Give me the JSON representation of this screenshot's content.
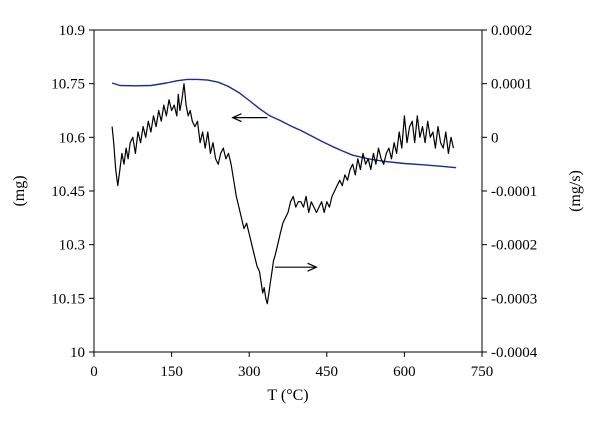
{
  "chart_data": {
    "type": "line",
    "title": "",
    "xlabel": "T (°C)",
    "ylabel_left": "(mg)",
    "ylabel_right": "(mg/s)",
    "xlim": [
      0,
      750
    ],
    "ylim_left": [
      10,
      10.9
    ],
    "ylim_right": [
      -0.0004,
      0.0002
    ],
    "x_ticks": [
      "0",
      "150",
      "300",
      "450",
      "600",
      "750"
    ],
    "y_left_ticks": [
      "10",
      "10.15",
      "10.3",
      "10.45",
      "10.6",
      "10.75",
      "10.9"
    ],
    "y_right_ticks": [
      "-0.0004",
      "-0.0003",
      "-0.0002",
      "-0.0001",
      "0",
      "0.0001",
      "0.0002"
    ],
    "grid": false,
    "legend": "none",
    "colors": {
      "mass": "#1a2a9c",
      "rate": "#000000"
    },
    "annotations": [
      {
        "text": "arrow pointing left",
        "x": 335,
        "y_left": 10.655,
        "to_x": 268,
        "to_y_left": 10.655,
        "axis": "left"
      },
      {
        "text": "arrow pointing right",
        "x": 350,
        "y_left": 10.237,
        "to_x": 430,
        "to_y_left": 10.237,
        "axis": "left"
      }
    ],
    "series": [
      {
        "axis": "left",
        "color": "#1a2a9c",
        "x": [
          35,
          50,
          80,
          110,
          140,
          160,
          180,
          200,
          220,
          240,
          260,
          280,
          300,
          320,
          340,
          360,
          380,
          400,
          420,
          440,
          460,
          480,
          500,
          530,
          560,
          600,
          640,
          680,
          700
        ],
        "y": [
          10.752,
          10.745,
          10.744,
          10.745,
          10.752,
          10.758,
          10.762,
          10.762,
          10.76,
          10.754,
          10.742,
          10.725,
          10.703,
          10.68,
          10.66,
          10.647,
          10.632,
          10.619,
          10.604,
          10.589,
          10.575,
          10.562,
          10.55,
          10.54,
          10.533,
          10.527,
          10.523,
          10.518,
          10.515
        ]
      },
      {
        "axis": "right",
        "color": "#000000",
        "x": [
          35,
          38,
          42,
          46,
          50,
          54,
          58,
          62,
          66,
          70,
          75,
          80,
          85,
          90,
          95,
          100,
          105,
          110,
          115,
          120,
          125,
          130,
          135,
          140,
          145,
          150,
          155,
          160,
          163,
          166,
          170,
          174,
          178,
          182,
          186,
          190,
          195,
          200,
          205,
          210,
          215,
          220,
          225,
          230,
          235,
          240,
          245,
          250,
          255,
          260,
          265,
          270,
          275,
          280,
          285,
          290,
          295,
          300,
          305,
          310,
          315,
          320,
          323,
          326,
          329,
          332,
          335,
          338,
          341,
          344,
          347,
          350,
          355,
          360,
          365,
          370,
          375,
          380,
          385,
          390,
          395,
          400,
          405,
          410,
          415,
          420,
          425,
          430,
          435,
          440,
          445,
          450,
          455,
          460,
          465,
          470,
          475,
          480,
          485,
          490,
          495,
          500,
          505,
          510,
          515,
          520,
          525,
          530,
          535,
          540,
          545,
          550,
          555,
          560,
          565,
          570,
          575,
          580,
          585,
          590,
          595,
          600,
          605,
          610,
          615,
          620,
          625,
          630,
          635,
          640,
          645,
          650,
          655,
          660,
          665,
          670,
          675,
          680,
          685,
          690,
          695
        ],
        "y": [
          2e-05,
          -1e-05,
          -6e-05,
          -9e-05,
          -6e-05,
          -3e-05,
          -5e-05,
          -2e-05,
          -4e-05,
          -1e-05,
          0.0,
          -3e-05,
          1e-05,
          -1e-05,
          2e-05,
          0.0,
          3e-05,
          1e-05,
          4e-05,
          2e-05,
          5e-05,
          3e-05,
          6e-05,
          4e-05,
          7e-05,
          5e-05,
          6e-05,
          4e-05,
          8e-05,
          5e-05,
          7e-05,
          0.0001,
          6e-05,
          4e-05,
          5e-05,
          3e-05,
          2e-05,
          3e-05,
          -1e-05,
          1e-05,
          -2e-05,
          1e-05,
          -3e-05,
          -1e-05,
          -4e-05,
          -5e-05,
          -3e-05,
          -2e-05,
          -4e-05,
          -3e-05,
          -5e-05,
          -8e-05,
          -0.00011,
          -0.00013,
          -0.00015,
          -0.00017,
          -0.00016,
          -0.00018,
          -0.0002,
          -0.00022,
          -0.00024,
          -0.00025,
          -0.00027,
          -0.00029,
          -0.00028,
          -0.0003,
          -0.00031,
          -0.00029,
          -0.00027,
          -0.00025,
          -0.00023,
          -0.00022,
          -0.0002,
          -0.00018,
          -0.00016,
          -0.00015,
          -0.00014,
          -0.00012,
          -0.00011,
          -0.00013,
          -0.00012,
          -0.00012,
          -0.00013,
          -0.00011,
          -0.00014,
          -0.00012,
          -0.00013,
          -0.00014,
          -0.00013,
          -0.00012,
          -0.00014,
          -0.00012,
          -0.00013,
          -0.00011,
          -0.0001,
          -9e-05,
          -8e-05,
          -9e-05,
          -7e-05,
          -8e-05,
          -6e-05,
          -5e-05,
          -7e-05,
          -4e-05,
          -6e-05,
          -3e-05,
          -5e-05,
          -4e-05,
          -6e-05,
          -3e-05,
          -5e-05,
          -2e-05,
          -4e-05,
          -5e-05,
          -3e-05,
          -2e-05,
          -4e-05,
          -1e-05,
          -3e-05,
          1e-05,
          -2e-05,
          4e-05,
          -1e-05,
          2e-05,
          3e-05,
          -1e-05,
          4e-05,
          0.0,
          2e-05,
          -1e-05,
          3e-05,
          0.0,
          1e-05,
          -2e-05,
          2e-05,
          -1e-05,
          -2e-05,
          1e-05,
          -3e-05,
          0.0,
          -2e-05
        ]
      }
    ]
  }
}
